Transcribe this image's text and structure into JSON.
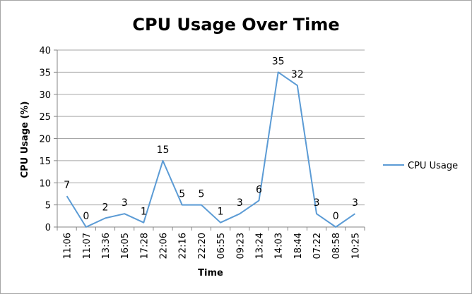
{
  "chart_data": {
    "type": "line",
    "title": "CPU Usage Over Time",
    "xlabel": "Time",
    "ylabel": "CPU Usage (%)",
    "categories": [
      "11:06",
      "11:07",
      "13:36",
      "16:05",
      "17:28",
      "22:06",
      "22:16",
      "22:20",
      "06:55",
      "09:23",
      "13:24",
      "14:03",
      "18:44",
      "07:22",
      "08:58",
      "10:25"
    ],
    "series": [
      {
        "name": "CPU Usage",
        "values": [
          7,
          0,
          2,
          3,
          1,
          15,
          5,
          5,
          1,
          3,
          6,
          35,
          32,
          3,
          0,
          3
        ]
      }
    ],
    "ylim": [
      0,
      40
    ],
    "yticks": [
      "0",
      "5",
      "10",
      "15",
      "20",
      "25",
      "30",
      "35",
      "40"
    ],
    "grid": true,
    "legend": "right",
    "data_labels": true,
    "colors": {
      "series": "#5b9bd5"
    }
  }
}
